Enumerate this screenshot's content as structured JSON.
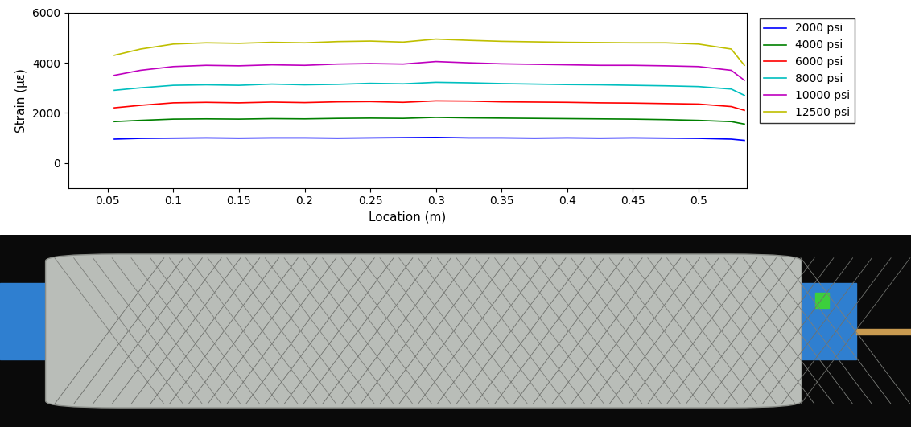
{
  "chart_data": {
    "type": "line",
    "x_label": "Location (m)",
    "y_label": "Strain (με)",
    "x": [
      0.055,
      0.075,
      0.1,
      0.125,
      0.15,
      0.175,
      0.2,
      0.225,
      0.25,
      0.275,
      0.3,
      0.325,
      0.35,
      0.375,
      0.4,
      0.425,
      0.45,
      0.475,
      0.5,
      0.525,
      0.535
    ],
    "series": [
      {
        "name": "2000 psi",
        "color": "#0000ff",
        "values": [
          950,
          980,
          990,
          1000,
          990,
          1000,
          1000,
          990,
          1000,
          1010,
          1020,
          1000,
          1000,
          990,
          1000,
          990,
          1000,
          990,
          980,
          950,
          900
        ]
      },
      {
        "name": "4000 psi",
        "color": "#008000",
        "values": [
          1650,
          1700,
          1750,
          1760,
          1750,
          1770,
          1760,
          1780,
          1790,
          1780,
          1820,
          1800,
          1790,
          1780,
          1770,
          1760,
          1750,
          1730,
          1700,
          1650,
          1550
        ]
      },
      {
        "name": "6000 psi",
        "color": "#ff0000",
        "values": [
          2200,
          2300,
          2400,
          2420,
          2400,
          2430,
          2410,
          2440,
          2450,
          2420,
          2480,
          2470,
          2440,
          2430,
          2420,
          2400,
          2390,
          2370,
          2350,
          2250,
          2100
        ]
      },
      {
        "name": "8000 psi",
        "color": "#00bfbf",
        "values": [
          2900,
          3000,
          3100,
          3120,
          3100,
          3150,
          3120,
          3140,
          3180,
          3160,
          3220,
          3200,
          3170,
          3150,
          3130,
          3120,
          3100,
          3080,
          3050,
          2950,
          2700
        ]
      },
      {
        "name": "10000 psi",
        "color": "#bf00bf",
        "values": [
          3500,
          3700,
          3850,
          3900,
          3880,
          3920,
          3900,
          3950,
          3970,
          3950,
          4050,
          4000,
          3960,
          3940,
          3920,
          3900,
          3900,
          3880,
          3850,
          3700,
          3300
        ]
      },
      {
        "name": "12500 psi",
        "color": "#bfbf00",
        "values": [
          4300,
          4550,
          4750,
          4800,
          4780,
          4820,
          4800,
          4850,
          4870,
          4830,
          4950,
          4900,
          4860,
          4840,
          4820,
          4810,
          4800,
          4800,
          4750,
          4550,
          3900
        ]
      }
    ],
    "xlim": [
      0.02,
      0.537
    ],
    "xticks": [
      0.05,
      0.1,
      0.15,
      0.2,
      0.25,
      0.3,
      0.35,
      0.4,
      0.45,
      0.5
    ],
    "ylim": [
      -1000,
      6000
    ],
    "yticks": [
      0,
      2000,
      4000,
      6000
    ],
    "grid": false,
    "legend": "upper left"
  }
}
